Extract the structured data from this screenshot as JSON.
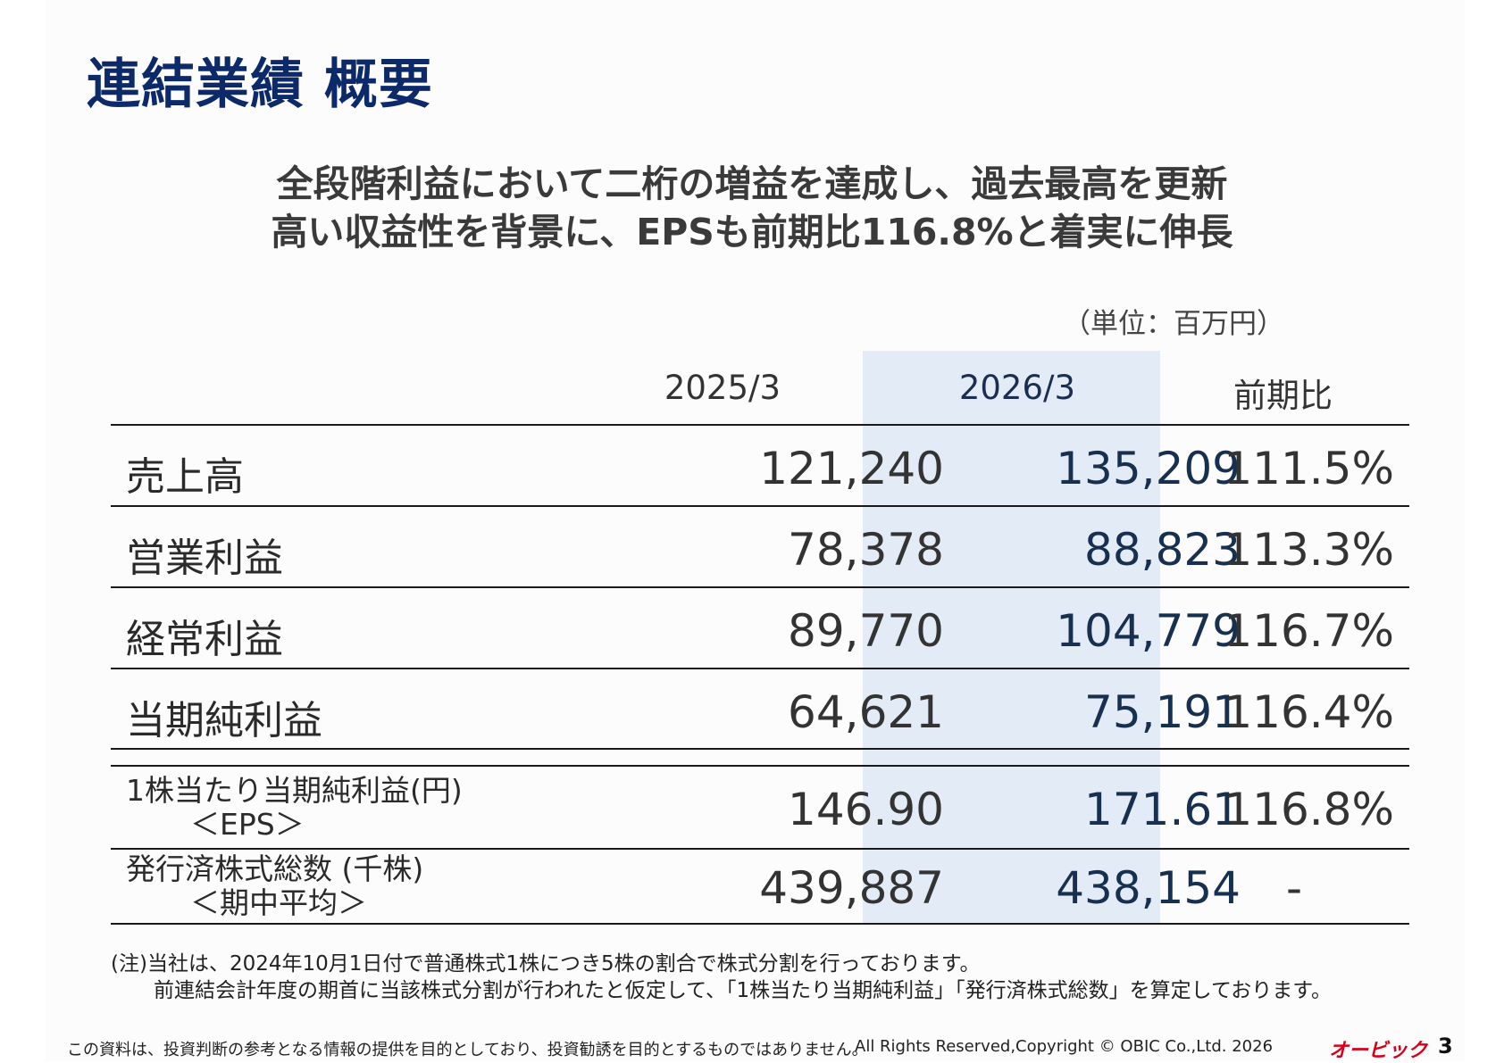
{
  "title": "連結業績 概要",
  "headline": {
    "line1": "全段階利益において二桁の増益を達成し、過去最高を更新",
    "line2": "高い収益性を背景に、EPSも前期比116.8%と着実に伸長"
  },
  "unit": "（単位：百万円）",
  "table": {
    "columns": [
      "2025/3",
      "2026/3",
      "前期比"
    ],
    "rows": [
      {
        "label": "売上高",
        "prev": "121,240",
        "cur": "135,209",
        "ratio": "111.5%"
      },
      {
        "label": "営業利益",
        "prev": "78,378",
        "cur": "88,823",
        "ratio": "113.3%"
      },
      {
        "label": "経常利益",
        "prev": "89,770",
        "cur": "104,779",
        "ratio": "116.7%"
      },
      {
        "label": "当期純利益",
        "prev": "64,621",
        "cur": "75,191",
        "ratio": "116.4%"
      }
    ],
    "eps": {
      "label": "1株当たり当期純利益(円)",
      "sub": "＜EPS＞",
      "prev": "146.90",
      "cur": "171.61",
      "ratio": "116.8%"
    },
    "shares": {
      "label": "発行済株式総数 (千株)",
      "sub": "＜期中平均＞",
      "prev": "439,887",
      "cur": "438,154",
      "ratio": "-"
    }
  },
  "note": {
    "line1": "(注)当社は、2024年10月1日付で普通株式1株につき5株の割合で株式分割を行っております。",
    "line2": "前連結会計年度の期首に当該株式分割が行われたと仮定して、「1株当たり当期純利益」「発行済株式総数」を算定しております。"
  },
  "footer": {
    "disclaimer": "この資料は、投資判断の参考となる情報の提供を目的としており、投資勧誘を目的とするものではありません。",
    "copyright": "All Rights Reserved,Copyright © OBIC Co.,Ltd. 2026",
    "logo": "オービック",
    "page": "3"
  }
}
